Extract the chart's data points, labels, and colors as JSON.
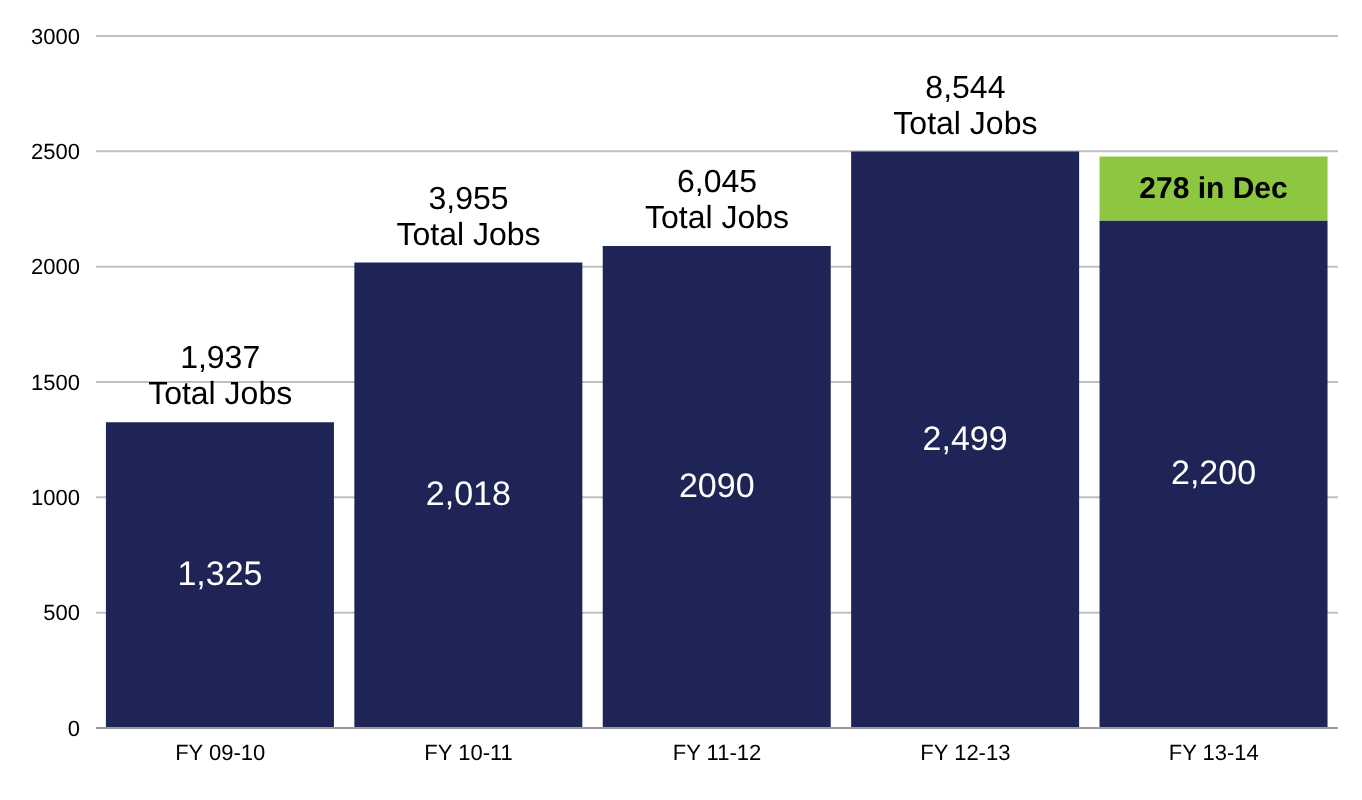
{
  "chart_data": {
    "type": "bar",
    "stacked": true,
    "categories": [
      "FY 09-10",
      "FY 10-11",
      "FY 11-12",
      "FY 12-13",
      "FY 13-14"
    ],
    "series": [
      {
        "color": "#1f2456",
        "values": [
          1325,
          2018,
          2090,
          2499,
          2200
        ],
        "value_labels": [
          "1,325",
          "2,018",
          "2090",
          "2,499",
          "2,200"
        ]
      },
      {
        "color": "#8dc63f",
        "values": [
          null,
          null,
          null,
          null,
          278
        ],
        "value_labels": [
          null,
          null,
          null,
          null,
          "278 in Dec"
        ]
      }
    ],
    "annotations": [
      {
        "text": "1,937\nTotal Jobs",
        "x": "FY 09-10",
        "y": 1325
      },
      {
        "text": "3,955\nTotal Jobs",
        "x": "FY 10-11",
        "y": 2018
      },
      {
        "text": "6,045\nTotal Jobs",
        "x": "FY 11-12",
        "y": 2090
      },
      {
        "text": "8,544\nTotal Jobs",
        "x": "FY 12-13",
        "y": 2499
      }
    ],
    "ylim": [
      0,
      3000
    ],
    "yticks": [
      0,
      500,
      1000,
      1500,
      2000,
      2500,
      3000
    ],
    "grid": "y",
    "legend": false
  }
}
